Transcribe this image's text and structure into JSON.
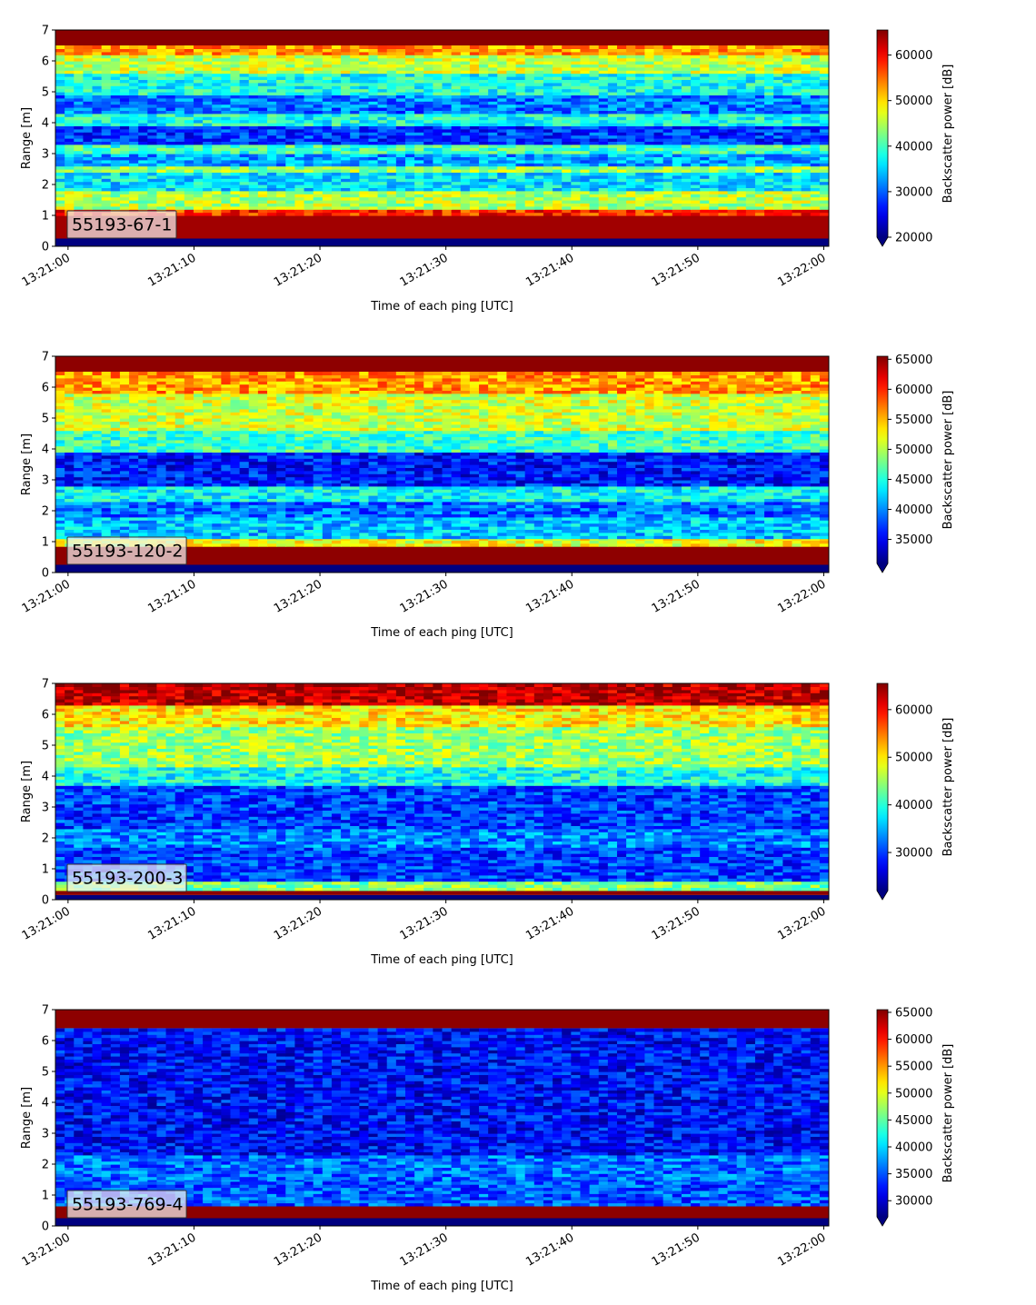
{
  "chart_data": [
    {
      "type": "heatmap",
      "panel_label": "55193-67-1",
      "xlabel": "Time of each ping [UTC]",
      "ylabel": "Range [m]",
      "x_ticks": [
        "13:21:00",
        "13:21:10",
        "13:21:20",
        "13:21:30",
        "13:21:40",
        "13:21:50",
        "13:22:00"
      ],
      "x_range": [
        "13:21:00",
        "13:22:00"
      ],
      "y_ticks": [
        0,
        1,
        2,
        3,
        4,
        5,
        6,
        7
      ],
      "ylim": [
        0,
        7
      ],
      "colorbar": {
        "label": "Backscatter power [dB]",
        "ticks": [
          20000,
          30000,
          40000,
          50000,
          60000
        ],
        "range": [
          20000,
          65500
        ],
        "extend": "min"
      },
      "colormap": "jet",
      "bands": [
        {
          "range_m": [
            0.0,
            0.25
          ],
          "value": 20000
        },
        {
          "range_m": [
            0.25,
            1.0
          ],
          "value": 64000
        },
        {
          "range_m": [
            1.0,
            1.2
          ],
          "value": 58000
        },
        {
          "range_m": [
            1.2,
            1.8
          ],
          "value": 45000
        },
        {
          "range_m": [
            1.8,
            2.4
          ],
          "value": 36000
        },
        {
          "range_m": [
            2.4,
            2.6
          ],
          "value": 44000
        },
        {
          "range_m": [
            2.6,
            3.0
          ],
          "value": 33000
        },
        {
          "range_m": [
            3.0,
            3.3
          ],
          "value": 40000
        },
        {
          "range_m": [
            3.3,
            3.9
          ],
          "value": 28000
        },
        {
          "range_m": [
            3.9,
            4.3
          ],
          "value": 38000
        },
        {
          "range_m": [
            4.3,
            4.9
          ],
          "value": 31000
        },
        {
          "range_m": [
            4.9,
            5.6
          ],
          "value": 38000
        },
        {
          "range_m": [
            5.6,
            6.2
          ],
          "value": 46000
        },
        {
          "range_m": [
            6.2,
            6.5
          ],
          "value": 53000
        },
        {
          "range_m": [
            6.5,
            7.0
          ],
          "value": 65000
        }
      ]
    },
    {
      "type": "heatmap",
      "panel_label": "55193-120-2",
      "xlabel": "Time of each ping [UTC]",
      "ylabel": "Range [m]",
      "x_ticks": [
        "13:21:00",
        "13:21:10",
        "13:21:20",
        "13:21:30",
        "13:21:40",
        "13:21:50",
        "13:22:00"
      ],
      "x_range": [
        "13:21:00",
        "13:22:00"
      ],
      "y_ticks": [
        0,
        1,
        2,
        3,
        4,
        5,
        6,
        7
      ],
      "ylim": [
        0,
        7
      ],
      "colorbar": {
        "label": "Backscatter power [dB]",
        "ticks": [
          35000,
          40000,
          45000,
          50000,
          55000,
          60000,
          65000
        ],
        "range": [
          31000,
          65500
        ],
        "extend": "min"
      },
      "colormap": "jet",
      "bands": [
        {
          "range_m": [
            0.0,
            0.25
          ],
          "value": 31000
        },
        {
          "range_m": [
            0.25,
            0.85
          ],
          "value": 65000
        },
        {
          "range_m": [
            0.85,
            1.1
          ],
          "value": 52000
        },
        {
          "range_m": [
            1.1,
            1.8
          ],
          "value": 42000
        },
        {
          "range_m": [
            1.8,
            2.3
          ],
          "value": 39000
        },
        {
          "range_m": [
            2.3,
            2.8
          ],
          "value": 44000
        },
        {
          "range_m": [
            2.8,
            3.9
          ],
          "value": 36000
        },
        {
          "range_m": [
            3.9,
            4.6
          ],
          "value": 46000
        },
        {
          "range_m": [
            4.6,
            5.8
          ],
          "value": 51000
        },
        {
          "range_m": [
            5.8,
            6.5
          ],
          "value": 56000
        },
        {
          "range_m": [
            6.5,
            7.0
          ],
          "value": 65000
        }
      ]
    },
    {
      "type": "heatmap",
      "panel_label": "55193-200-3",
      "xlabel": "Time of each ping [UTC]",
      "ylabel": "Range [m]",
      "x_ticks": [
        "13:21:00",
        "13:21:10",
        "13:21:20",
        "13:21:30",
        "13:21:40",
        "13:21:50",
        "13:22:00"
      ],
      "x_range": [
        "13:21:00",
        "13:22:00"
      ],
      "y_ticks": [
        0,
        1,
        2,
        3,
        4,
        5,
        6,
        7
      ],
      "ylim": [
        0,
        7
      ],
      "colorbar": {
        "label": "Backscatter power [dB]",
        "ticks": [
          30000,
          40000,
          50000,
          60000
        ],
        "range": [
          22000,
          65500
        ],
        "extend": "min"
      },
      "colormap": "jet",
      "bands": [
        {
          "range_m": [
            0.0,
            0.15
          ],
          "value": 22000
        },
        {
          "range_m": [
            0.15,
            0.3
          ],
          "value": 65000
        },
        {
          "range_m": [
            0.3,
            0.6
          ],
          "value": 44000
        },
        {
          "range_m": [
            0.6,
            1.7
          ],
          "value": 30000
        },
        {
          "range_m": [
            1.7,
            2.3
          ],
          "value": 33000
        },
        {
          "range_m": [
            2.3,
            3.7
          ],
          "value": 30000
        },
        {
          "range_m": [
            3.7,
            4.3
          ],
          "value": 39000
        },
        {
          "range_m": [
            4.3,
            5.6
          ],
          "value": 45000
        },
        {
          "range_m": [
            5.6,
            6.3
          ],
          "value": 50000
        },
        {
          "range_m": [
            6.3,
            7.0
          ],
          "value": 63000
        }
      ]
    },
    {
      "type": "heatmap",
      "panel_label": "55193-769-4",
      "xlabel": "Time of each ping [UTC]",
      "ylabel": "Range [m]",
      "x_ticks": [
        "13:21:00",
        "13:21:10",
        "13:21:20",
        "13:21:30",
        "13:21:40",
        "13:21:50",
        "13:22:00"
      ],
      "x_range": [
        "13:21:00",
        "13:22:00"
      ],
      "y_ticks": [
        0,
        1,
        2,
        3,
        4,
        5,
        6,
        7
      ],
      "ylim": [
        0,
        7
      ],
      "colorbar": {
        "label": "Backscatter power [dB]",
        "ticks": [
          30000,
          35000,
          40000,
          45000,
          50000,
          55000,
          60000,
          65000
        ],
        "range": [
          27000,
          65500
        ],
        "extend": "min"
      },
      "colormap": "jet",
      "bands": [
        {
          "range_m": [
            0.0,
            0.25
          ],
          "value": 27000
        },
        {
          "range_m": [
            0.25,
            0.65
          ],
          "value": 65000
        },
        {
          "range_m": [
            0.65,
            1.5
          ],
          "value": 35000
        },
        {
          "range_m": [
            1.5,
            2.3
          ],
          "value": 36000
        },
        {
          "range_m": [
            2.3,
            6.4
          ],
          "value": 32000
        },
        {
          "range_m": [
            6.4,
            7.0
          ],
          "value": 65000
        }
      ]
    }
  ]
}
